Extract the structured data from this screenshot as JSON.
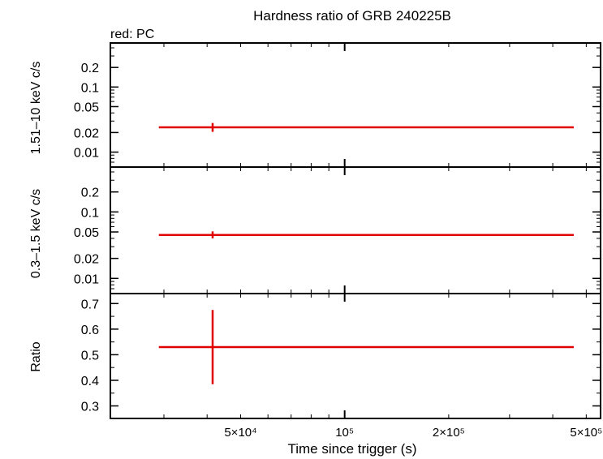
{
  "title": "Hardness ratio of GRB 240225B",
  "subtitle": "red: PC",
  "xlabel": "Time since trigger (s)",
  "colors": {
    "series": "#e00000",
    "axis": "#000000"
  },
  "chart_data": [
    {
      "type": "scatter",
      "panel": "top",
      "ylabel": "1.51–10 keV c/s",
      "xscale": "log",
      "yscale": "log",
      "xlim": [
        21000,
        550000
      ],
      "ylim": [
        0.007,
        0.4
      ],
      "yticks": [
        {
          "value": 0.01,
          "label": "0.01"
        },
        {
          "value": 0.02,
          "label": "0.02"
        },
        {
          "value": 0.05,
          "label": "0.05"
        },
        {
          "value": 0.1,
          "label": "0.1"
        },
        {
          "value": 0.2,
          "label": "0.2"
        }
      ],
      "series": [
        {
          "points": [
            {
              "x": 41500,
              "y": 0.024,
              "xlo": 29000,
              "xhi": 460000,
              "ylo": 0.0205,
              "yhi": 0.028
            }
          ]
        }
      ]
    },
    {
      "type": "scatter",
      "panel": "middle",
      "ylabel": "0.3–1.5 keV c/s",
      "xscale": "log",
      "yscale": "log",
      "xlim": [
        21000,
        550000
      ],
      "ylim": [
        0.007,
        0.4
      ],
      "yticks": [
        {
          "value": 0.01,
          "label": "0.01"
        },
        {
          "value": 0.02,
          "label": "0.02"
        },
        {
          "value": 0.05,
          "label": "0.05"
        },
        {
          "value": 0.1,
          "label": "0.1"
        },
        {
          "value": 0.2,
          "label": "0.2"
        }
      ],
      "series": [
        {
          "points": [
            {
              "x": 41500,
              "y": 0.045,
              "xlo": 29000,
              "xhi": 460000,
              "ylo": 0.04,
              "yhi": 0.051
            }
          ]
        }
      ]
    },
    {
      "type": "scatter",
      "panel": "bottom",
      "ylabel": "Ratio",
      "xscale": "log",
      "yscale": "linear",
      "xlim": [
        21000,
        550000
      ],
      "ylim": [
        0.27,
        0.72
      ],
      "yticks": [
        {
          "value": 0.3,
          "label": "0.3"
        },
        {
          "value": 0.4,
          "label": "0.4"
        },
        {
          "value": 0.5,
          "label": "0.5"
        },
        {
          "value": 0.6,
          "label": "0.6"
        },
        {
          "value": 0.7,
          "label": "0.7"
        }
      ],
      "xticks": [
        {
          "value": 50000,
          "label": "5×10⁴"
        },
        {
          "value": 100000,
          "label": "10⁵"
        },
        {
          "value": 200000,
          "label": "2×10⁵"
        },
        {
          "value": 500000,
          "label": "5×10⁵"
        }
      ],
      "series": [
        {
          "points": [
            {
              "x": 41500,
              "y": 0.53,
              "xlo": 29000,
              "xhi": 460000,
              "ylo": 0.385,
              "yhi": 0.675
            }
          ]
        }
      ]
    }
  ]
}
